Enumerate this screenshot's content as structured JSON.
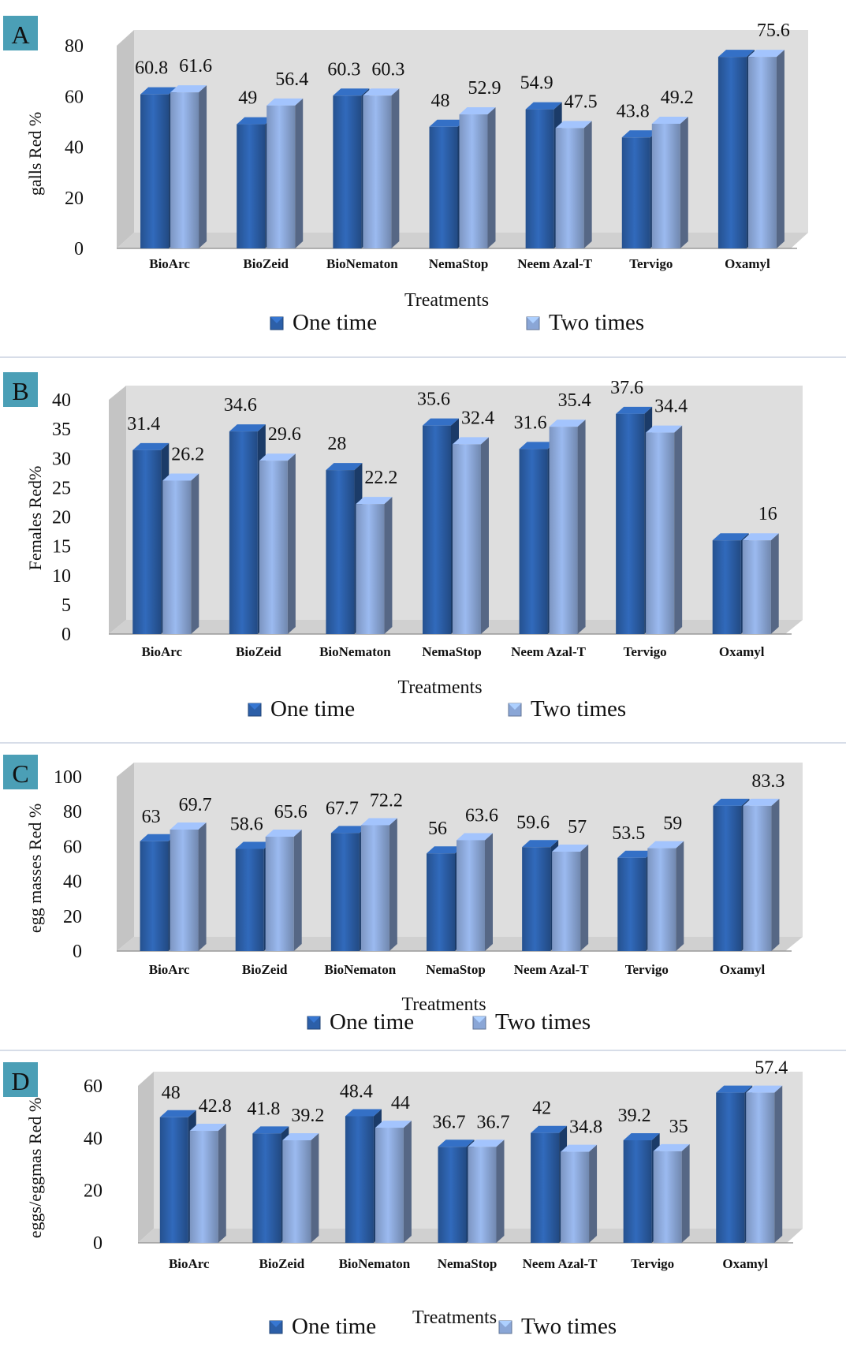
{
  "legend": {
    "one_time": "One time",
    "two_times": "Two times"
  },
  "colors": {
    "one_time": "#2c5fa8",
    "two_times": "#8aa6d6",
    "plot_bg": "#dedede",
    "panel_letter_bg": "#4b9fb6"
  },
  "chart_data": [
    {
      "panel": "A",
      "type": "bar",
      "categories": [
        "BioArc",
        "BioZeid",
        "BioNematon",
        "NemaStop",
        "Neem Azal-T",
        "Tervigo",
        "Oxamyl"
      ],
      "series": [
        {
          "name": "One time",
          "values": [
            60.8,
            49,
            60.3,
            48,
            54.9,
            43.8,
            75.6
          ]
        },
        {
          "name": "Two times",
          "values": [
            61.6,
            56.4,
            60.3,
            52.9,
            47.5,
            49.2,
            75.6
          ]
        }
      ],
      "data_labels": [
        [
          "60.8",
          "49",
          "60.3",
          "48",
          "54.9",
          "43.8",
          ""
        ],
        [
          "61.6",
          "56.4",
          "60.3",
          "52.9",
          "47.5",
          "49.2",
          "75.6"
        ]
      ],
      "xlabel": "Treatments",
      "ylabel": "galls Red %",
      "ylim": [
        0,
        80
      ],
      "yticks": [
        0,
        20,
        40,
        60,
        80
      ],
      "grid": false,
      "legend_position": "bottom"
    },
    {
      "panel": "B",
      "type": "bar",
      "categories": [
        "BioArc",
        "BioZeid",
        "BioNematon",
        "NemaStop",
        "Neem Azal-T",
        "Tervigo",
        "Oxamyl"
      ],
      "series": [
        {
          "name": "One time",
          "values": [
            31.4,
            34.6,
            28,
            35.6,
            31.6,
            37.6,
            16
          ]
        },
        {
          "name": "Two times",
          "values": [
            26.2,
            29.6,
            22.2,
            32.4,
            35.4,
            34.4,
            16
          ]
        }
      ],
      "data_labels": [
        [
          "31.4",
          "34.6",
          "28",
          "35.6",
          "31.6",
          "37.6",
          ""
        ],
        [
          "26.2",
          "29.6",
          "22.2",
          "32.4",
          "35.4",
          "34.4",
          "16"
        ]
      ],
      "xlabel": "Treatments",
      "ylabel": "Females Red%",
      "ylim": [
        0,
        40
      ],
      "yticks": [
        0,
        5,
        10,
        15,
        20,
        25,
        30,
        35,
        40
      ],
      "grid": false,
      "legend_position": "bottom"
    },
    {
      "panel": "C",
      "type": "bar",
      "categories": [
        "BioArc",
        "BioZeid",
        "BioNematon",
        "NemaStop",
        "Neem Azal-T",
        "Tervigo",
        "Oxamyl"
      ],
      "series": [
        {
          "name": "One time",
          "values": [
            63,
            58.6,
            67.7,
            56,
            59.6,
            53.5,
            83.3
          ]
        },
        {
          "name": "Two times",
          "values": [
            69.7,
            65.6,
            72.2,
            63.6,
            57,
            59,
            83.3
          ]
        }
      ],
      "data_labels": [
        [
          "63",
          "58.6",
          "67.7",
          "56",
          "59.6",
          "53.5",
          ""
        ],
        [
          "69.7",
          "65.6",
          "72.2",
          "63.6",
          "57",
          "59",
          "83.3"
        ]
      ],
      "xlabel": "Treatments",
      "ylabel": "egg masses Red %",
      "ylim": [
        0,
        100
      ],
      "yticks": [
        0,
        20,
        40,
        60,
        80,
        100
      ],
      "grid": false,
      "legend_position": "bottom"
    },
    {
      "panel": "D",
      "type": "bar",
      "categories": [
        "BioArc",
        "BioZeid",
        "BioNematon",
        "NemaStop",
        "Neem Azal-T",
        "Tervigo",
        "Oxamyl"
      ],
      "series": [
        {
          "name": "One time",
          "values": [
            48,
            41.8,
            48.4,
            36.7,
            42,
            39.2,
            57.4
          ]
        },
        {
          "name": "Two times",
          "values": [
            42.8,
            39.2,
            44,
            36.7,
            34.8,
            35,
            57.4
          ]
        }
      ],
      "data_labels": [
        [
          "48",
          "41.8",
          "48.4",
          "36.7",
          "42",
          "39.2",
          ""
        ],
        [
          "42.8",
          "39.2",
          "44",
          "36.7",
          "34.8",
          "35",
          "57.4"
        ]
      ],
      "xlabel": "Treatments",
      "ylabel": "eggs/eggmas Red %",
      "ylim": [
        0,
        60
      ],
      "yticks": [
        0,
        20,
        40,
        60
      ],
      "grid": false,
      "legend_position": "bottom"
    }
  ]
}
